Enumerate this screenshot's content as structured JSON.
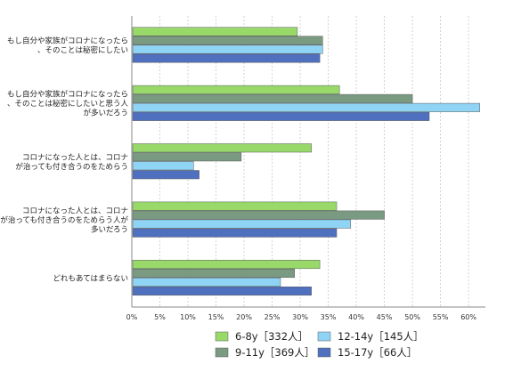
{
  "chart_data": {
    "type": "bar",
    "orientation": "horizontal",
    "categories": [
      [
        "もし自分や家族がコロナになったら",
        "、そのことは秘密にしたい"
      ],
      [
        "もし自分や家族がコロナになったら",
        "、そのことは秘密にしたいと思う人",
        "が多いだろう"
      ],
      [
        "コロナになった人とは、コロナ",
        "が治っても付き合うのをためらう"
      ],
      [
        "コロナになった人とは、コロナ",
        "が治っても付き合うのをためらう人が",
        "多いだろう"
      ],
      [
        "どれもあてはまらない"
      ]
    ],
    "series": [
      {
        "name": "6-8y［332人］",
        "color": "#98d96a",
        "values": [
          29.5,
          37,
          32,
          36.5,
          33.5
        ]
      },
      {
        "name": "9-11y［369人］",
        "color": "#7a9a82",
        "values": [
          34,
          50,
          19.5,
          45,
          29
        ]
      },
      {
        "name": "12-14y［145人］",
        "color": "#8fd3f5",
        "values": [
          34,
          62,
          11,
          39,
          26.5
        ]
      },
      {
        "name": "15-17y［66人］",
        "color": "#4f6fbf",
        "values": [
          33.5,
          53,
          12,
          36.5,
          32
        ]
      }
    ],
    "xlim": [
      0,
      63
    ],
    "xticks": [
      0,
      5,
      10,
      15,
      20,
      25,
      30,
      35,
      40,
      45,
      50,
      55,
      60
    ],
    "tick_suffix": "%",
    "grid": true,
    "legend_position": "bottom"
  }
}
